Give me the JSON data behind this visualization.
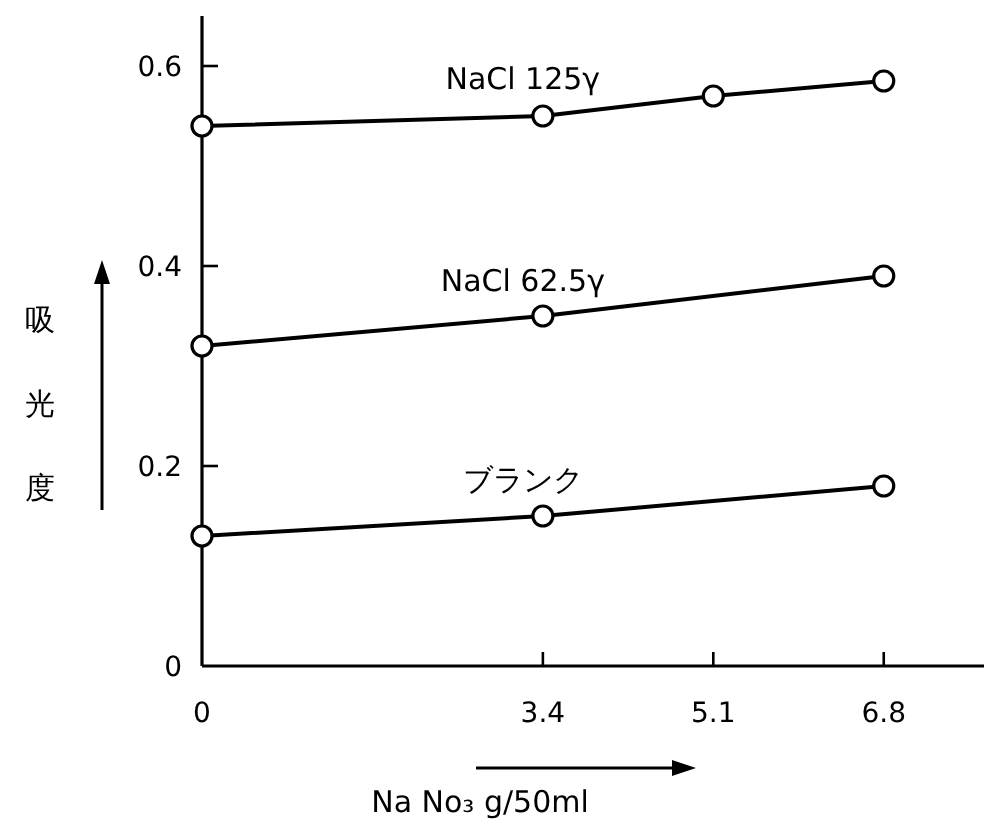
{
  "chart_data": {
    "type": "line",
    "xlabel": "Na No₃ g/50ml",
    "ylabel": "吸光度",
    "x": [
      0,
      3.4,
      5.1,
      6.8
    ],
    "xlim": [
      0,
      7.8
    ],
    "ylim": [
      0,
      0.65
    ],
    "xticks": [
      0,
      3.4,
      5.1,
      6.8
    ],
    "yticks": [
      0,
      0.2,
      0.4,
      0.6
    ],
    "marker": "circle",
    "series": [
      {
        "name": "NaCl 125γ",
        "color": "#000000",
        "values": [
          0.54,
          0.55,
          0.57,
          0.585
        ]
      },
      {
        "name": "NaCl 62.5γ",
        "color": "#000000",
        "values": [
          0.32,
          0.35,
          null,
          0.39
        ]
      },
      {
        "name": "ブランク",
        "color": "#000000",
        "values": [
          0.13,
          0.15,
          null,
          0.18
        ]
      }
    ]
  }
}
